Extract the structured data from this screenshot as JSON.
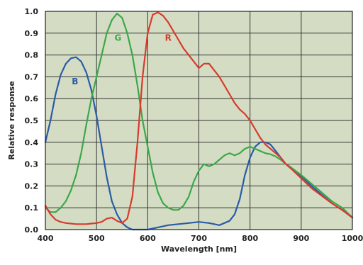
{
  "chart_data": {
    "type": "line",
    "xlabel": "Wavelength [nm]",
    "ylabel": "Relative response",
    "xlim": [
      400,
      1000
    ],
    "ylim": [
      0,
      1.0
    ],
    "x_ticks": [
      "400",
      "500",
      "600",
      "700",
      "800",
      "900",
      "1000"
    ],
    "y_ticks": [
      "0.0",
      "0.1",
      "0.2",
      "0.3",
      "0.4",
      "0.5",
      "0.6",
      "0.7",
      "0.8",
      "0.9",
      "1.0"
    ],
    "grid": true,
    "plot_background": "#d4ddc3",
    "series": [
      {
        "name": "B",
        "color": "#2a5ba8",
        "points": [
          [
            400,
            0.4
          ],
          [
            410,
            0.5
          ],
          [
            420,
            0.62
          ],
          [
            430,
            0.71
          ],
          [
            440,
            0.76
          ],
          [
            450,
            0.785
          ],
          [
            460,
            0.79
          ],
          [
            470,
            0.77
          ],
          [
            480,
            0.72
          ],
          [
            490,
            0.64
          ],
          [
            500,
            0.52
          ],
          [
            510,
            0.38
          ],
          [
            520,
            0.24
          ],
          [
            530,
            0.13
          ],
          [
            540,
            0.07
          ],
          [
            550,
            0.03
          ],
          [
            560,
            0.01
          ],
          [
            570,
            0.0
          ],
          [
            580,
            0.0
          ],
          [
            600,
            0.0
          ],
          [
            620,
            0.01
          ],
          [
            640,
            0.02
          ],
          [
            660,
            0.025
          ],
          [
            680,
            0.03
          ],
          [
            700,
            0.035
          ],
          [
            720,
            0.03
          ],
          [
            740,
            0.02
          ],
          [
            760,
            0.04
          ],
          [
            770,
            0.07
          ],
          [
            780,
            0.14
          ],
          [
            790,
            0.25
          ],
          [
            800,
            0.33
          ],
          [
            810,
            0.38
          ],
          [
            820,
            0.4
          ],
          [
            830,
            0.4
          ],
          [
            840,
            0.39
          ],
          [
            850,
            0.36
          ],
          [
            860,
            0.33
          ],
          [
            870,
            0.3
          ],
          [
            880,
            0.28
          ],
          [
            900,
            0.245
          ],
          [
            920,
            0.2
          ],
          [
            940,
            0.16
          ],
          [
            960,
            0.12
          ],
          [
            980,
            0.09
          ],
          [
            1000,
            0.055
          ]
        ]
      },
      {
        "name": "G",
        "color": "#3aa84a",
        "points": [
          [
            400,
            0.1
          ],
          [
            410,
            0.08
          ],
          [
            420,
            0.08
          ],
          [
            430,
            0.1
          ],
          [
            440,
            0.13
          ],
          [
            450,
            0.18
          ],
          [
            460,
            0.25
          ],
          [
            470,
            0.35
          ],
          [
            480,
            0.48
          ],
          [
            490,
            0.6
          ],
          [
            500,
            0.7
          ],
          [
            510,
            0.8
          ],
          [
            520,
            0.9
          ],
          [
            530,
            0.96
          ],
          [
            540,
            0.99
          ],
          [
            550,
            0.97
          ],
          [
            560,
            0.9
          ],
          [
            570,
            0.8
          ],
          [
            580,
            0.66
          ],
          [
            590,
            0.5
          ],
          [
            600,
            0.38
          ],
          [
            610,
            0.26
          ],
          [
            620,
            0.17
          ],
          [
            630,
            0.12
          ],
          [
            640,
            0.1
          ],
          [
            650,
            0.09
          ],
          [
            660,
            0.09
          ],
          [
            670,
            0.11
          ],
          [
            680,
            0.15
          ],
          [
            690,
            0.22
          ],
          [
            700,
            0.27
          ],
          [
            710,
            0.3
          ],
          [
            720,
            0.29
          ],
          [
            730,
            0.3
          ],
          [
            740,
            0.32
          ],
          [
            750,
            0.34
          ],
          [
            760,
            0.35
          ],
          [
            770,
            0.34
          ],
          [
            780,
            0.35
          ],
          [
            790,
            0.37
          ],
          [
            800,
            0.38
          ],
          [
            810,
            0.37
          ],
          [
            820,
            0.36
          ],
          [
            830,
            0.35
          ],
          [
            840,
            0.345
          ],
          [
            850,
            0.335
          ],
          [
            860,
            0.32
          ],
          [
            870,
            0.3
          ],
          [
            880,
            0.285
          ],
          [
            900,
            0.25
          ],
          [
            920,
            0.21
          ],
          [
            940,
            0.17
          ],
          [
            960,
            0.13
          ],
          [
            980,
            0.1
          ],
          [
            1000,
            0.055
          ]
        ]
      },
      {
        "name": "R",
        "color": "#d83a2e",
        "points": [
          [
            400,
            0.11
          ],
          [
            410,
            0.07
          ],
          [
            420,
            0.045
          ],
          [
            430,
            0.035
          ],
          [
            440,
            0.03
          ],
          [
            460,
            0.025
          ],
          [
            480,
            0.025
          ],
          [
            500,
            0.03
          ],
          [
            510,
            0.035
          ],
          [
            520,
            0.05
          ],
          [
            530,
            0.055
          ],
          [
            540,
            0.04
          ],
          [
            550,
            0.03
          ],
          [
            560,
            0.05
          ],
          [
            570,
            0.15
          ],
          [
            580,
            0.4
          ],
          [
            590,
            0.7
          ],
          [
            600,
            0.9
          ],
          [
            610,
            0.985
          ],
          [
            620,
            0.995
          ],
          [
            630,
            0.98
          ],
          [
            640,
            0.95
          ],
          [
            650,
            0.91
          ],
          [
            660,
            0.87
          ],
          [
            670,
            0.83
          ],
          [
            680,
            0.8
          ],
          [
            690,
            0.77
          ],
          [
            700,
            0.74
          ],
          [
            710,
            0.76
          ],
          [
            720,
            0.76
          ],
          [
            730,
            0.73
          ],
          [
            740,
            0.7
          ],
          [
            750,
            0.66
          ],
          [
            760,
            0.62
          ],
          [
            770,
            0.58
          ],
          [
            780,
            0.55
          ],
          [
            790,
            0.53
          ],
          [
            800,
            0.5
          ],
          [
            810,
            0.46
          ],
          [
            820,
            0.42
          ],
          [
            830,
            0.39
          ],
          [
            840,
            0.37
          ],
          [
            850,
            0.35
          ],
          [
            860,
            0.33
          ],
          [
            870,
            0.3
          ],
          [
            880,
            0.28
          ],
          [
            900,
            0.235
          ],
          [
            920,
            0.19
          ],
          [
            940,
            0.155
          ],
          [
            960,
            0.12
          ],
          [
            980,
            0.09
          ],
          [
            1000,
            0.055
          ]
        ]
      }
    ],
    "annotations": [
      {
        "text": "B",
        "color": "#2a5ba8",
        "x": 458,
        "y": 0.665
      },
      {
        "text": "G",
        "color": "#3aa84a",
        "x": 542,
        "y": 0.865
      },
      {
        "text": "R",
        "color": "#d83a2e",
        "x": 640,
        "y": 0.865
      }
    ]
  }
}
